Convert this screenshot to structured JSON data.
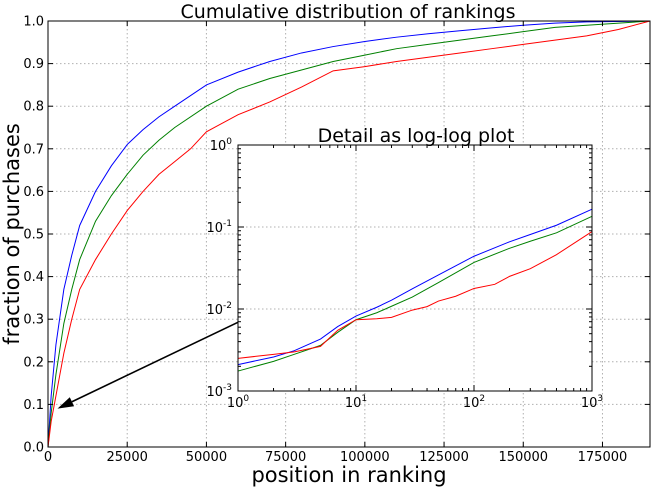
{
  "chart_data": [
    {
      "type": "line",
      "title": "Cumulative distribution of rankings",
      "xlabel": "position in ranking",
      "ylabel": "fraction of purchases",
      "xlim": [
        0,
        190000
      ],
      "ylim": [
        0.0,
        1.0
      ],
      "grid": true,
      "x_ticks": [
        0,
        25000,
        50000,
        75000,
        100000,
        125000,
        150000,
        175000
      ],
      "x_tick_labels": [
        "0",
        "25000",
        "50000",
        "75000",
        "100000",
        "125000",
        "150000",
        "175000"
      ],
      "y_ticks": [
        0.0,
        0.1,
        0.2,
        0.3,
        0.4,
        0.5,
        0.6,
        0.7,
        0.8,
        0.9,
        1.0
      ],
      "y_tick_labels": [
        "0.0",
        "0.1",
        "0.2",
        "0.3",
        "0.4",
        "0.5",
        "0.6",
        "0.7",
        "0.8",
        "0.9",
        "1.0"
      ],
      "series": [
        {
          "color": "#0000ff",
          "x": [
            0,
            1000,
            2500,
            5000,
            7500,
            10000,
            15000,
            20000,
            25000,
            30000,
            35000,
            40000,
            50000,
            60000,
            70000,
            80000,
            90000,
            100000,
            110000,
            120000,
            130000,
            140000,
            150000,
            160000,
            170000,
            190000
          ],
          "y": [
            0.0,
            0.12,
            0.24,
            0.37,
            0.45,
            0.52,
            0.6,
            0.66,
            0.71,
            0.745,
            0.775,
            0.8,
            0.85,
            0.88,
            0.905,
            0.925,
            0.94,
            0.952,
            0.962,
            0.97,
            0.977,
            0.984,
            0.99,
            0.995,
            0.998,
            1.0
          ]
        },
        {
          "color": "#008000",
          "x": [
            0,
            1000,
            2500,
            5000,
            7500,
            10000,
            15000,
            20000,
            25000,
            30000,
            35000,
            40000,
            50000,
            60000,
            70000,
            80000,
            90000,
            100000,
            110000,
            120000,
            130000,
            140000,
            150000,
            160000,
            170000,
            190000
          ],
          "y": [
            0.0,
            0.08,
            0.17,
            0.29,
            0.37,
            0.44,
            0.53,
            0.59,
            0.64,
            0.685,
            0.72,
            0.75,
            0.8,
            0.84,
            0.865,
            0.885,
            0.905,
            0.92,
            0.935,
            0.945,
            0.955,
            0.965,
            0.975,
            0.985,
            0.99,
            1.0
          ]
        },
        {
          "color": "#ff0000",
          "x": [
            0,
            1000,
            2500,
            5000,
            7500,
            10000,
            15000,
            20000,
            25000,
            30000,
            35000,
            40000,
            45000,
            50000,
            60000,
            70000,
            80000,
            90000,
            100000,
            110000,
            120000,
            130000,
            140000,
            150000,
            160000,
            170000,
            180000,
            190000
          ],
          "y": [
            0.0,
            0.06,
            0.12,
            0.22,
            0.3,
            0.37,
            0.44,
            0.5,
            0.555,
            0.6,
            0.64,
            0.67,
            0.7,
            0.74,
            0.78,
            0.81,
            0.845,
            0.883,
            0.893,
            0.905,
            0.915,
            0.925,
            0.935,
            0.945,
            0.955,
            0.965,
            0.98,
            1.0
          ]
        }
      ],
      "annotations": [
        {
          "type": "arrow",
          "from_data": [
            62000,
            0.3
          ],
          "to_data": [
            3000,
            0.09
          ]
        }
      ]
    },
    {
      "type": "line",
      "title": "Detail as log-log plot",
      "xlabel": "",
      "ylabel": "",
      "xscale": "log",
      "yscale": "log",
      "xlim": [
        1,
        1000
      ],
      "ylim": [
        0.001,
        1
      ],
      "grid": true,
      "x_tick_labels": [
        {
          "base": "10",
          "exp": "0",
          "value": 1
        },
        {
          "base": "10",
          "exp": "1",
          "value": 10
        },
        {
          "base": "10",
          "exp": "2",
          "value": 100
        },
        {
          "base": "10",
          "exp": "3",
          "value": 1000
        }
      ],
      "y_tick_labels": [
        {
          "base": "10",
          "exp": "-3",
          "value": 0.001
        },
        {
          "base": "10",
          "exp": "-2",
          "value": 0.01
        },
        {
          "base": "10",
          "exp": "-1",
          "value": 0.1
        },
        {
          "base": "10",
          "exp": "0",
          "value": 1
        }
      ],
      "series": [
        {
          "color": "#0000ff",
          "x": [
            1,
            2,
            3,
            5,
            7,
            10,
            15,
            20,
            30,
            50,
            100,
            200,
            300,
            500,
            1000
          ],
          "y": [
            0.0021,
            0.0026,
            0.0031,
            0.0043,
            0.0061,
            0.0082,
            0.0105,
            0.0128,
            0.0176,
            0.026,
            0.044,
            0.066,
            0.081,
            0.105,
            0.165
          ]
        },
        {
          "color": "#008000",
          "x": [
            1,
            2,
            3,
            5,
            7,
            10,
            15,
            20,
            30,
            50,
            100,
            200,
            300,
            500,
            1000
          ],
          "y": [
            0.00175,
            0.0023,
            0.0028,
            0.0036,
            0.0052,
            0.0074,
            0.009,
            0.0108,
            0.014,
            0.021,
            0.037,
            0.055,
            0.067,
            0.085,
            0.135
          ]
        },
        {
          "color": "#ff0000",
          "x": [
            1,
            2,
            3,
            5,
            7,
            10,
            15,
            20,
            30,
            40,
            50,
            70,
            100,
            150,
            200,
            300,
            500,
            1000
          ],
          "y": [
            0.0025,
            0.0028,
            0.003,
            0.0035,
            0.0055,
            0.0074,
            0.0076,
            0.0079,
            0.0097,
            0.0107,
            0.0125,
            0.0143,
            0.0178,
            0.02,
            0.025,
            0.031,
            0.046,
            0.088
          ]
        }
      ]
    }
  ]
}
